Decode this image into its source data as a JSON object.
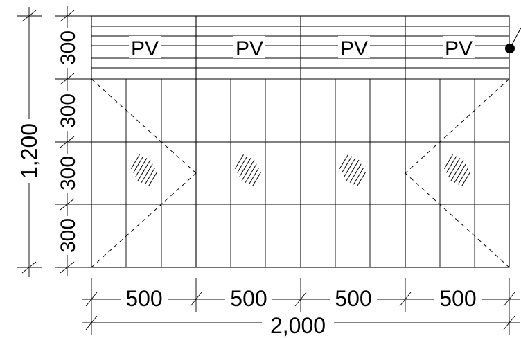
{
  "diagram": {
    "panel_label": "PV",
    "panels": [
      {
        "label": "PV"
      },
      {
        "label": "PV"
      },
      {
        "label": "PV"
      },
      {
        "label": "PV"
      }
    ],
    "dims": {
      "total_height": "1,200",
      "row_heights": [
        "300",
        "300",
        "300",
        "300"
      ],
      "column_widths": [
        "500",
        "500",
        "500",
        "500"
      ],
      "total_width": "2,000"
    }
  }
}
